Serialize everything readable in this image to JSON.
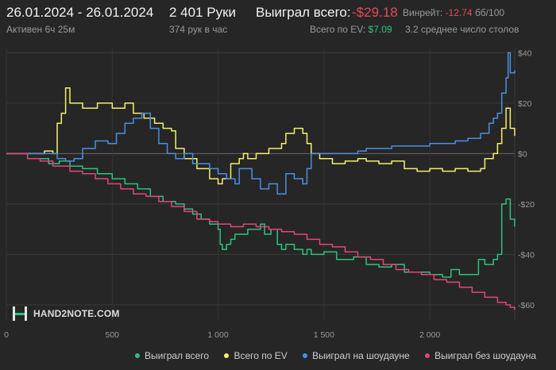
{
  "header": {
    "date_range": "26.01.2024 - 26.01.2024",
    "active": "Активен 6ч 25м",
    "hands": "2 401 Руки",
    "hands_per_hour": "374 рук в час",
    "won_label": "Выиграл всего:",
    "won_value": "-$29.18",
    "winrate_label": "Винрейт:",
    "winrate_value": "-12.74",
    "winrate_unit": "бб/100",
    "ev_label": "Всего по EV:",
    "ev_value": "$7.09",
    "tables": "3.2 среднее число столов"
  },
  "logo": {
    "text": "HAND2NOTE.COM"
  },
  "colors": {
    "background": "#262626",
    "green": "#2ec27e",
    "yellow": "#f4f06a",
    "blue": "#4a90e2",
    "pink": "#e2457a",
    "red": "#e24a5a"
  },
  "chart_data": {
    "type": "line",
    "xlim": [
      0,
      2401
    ],
    "ylim": [
      -66,
      42
    ],
    "x_ticks": [
      0,
      500,
      1000,
      1500,
      2000
    ],
    "x_tick_labels": [
      "0",
      "500",
      "1 000",
      "1 500",
      "2 000"
    ],
    "y_ticks": [
      40,
      20,
      0,
      -20,
      -40,
      -60
    ],
    "y_tick_labels": [
      "$40",
      "$20",
      "$0",
      "-$20",
      "-$40",
      "-$60"
    ],
    "grid": true,
    "legend_position": "bottom",
    "series": [
      {
        "name": "Выиграл всего",
        "color": "#2ec27e",
        "points": [
          [
            0,
            0
          ],
          [
            100,
            -2
          ],
          [
            200,
            -4
          ],
          [
            250,
            -3
          ],
          [
            300,
            -5
          ],
          [
            360,
            -6
          ],
          [
            430,
            -8
          ],
          [
            500,
            -10
          ],
          [
            560,
            -12
          ],
          [
            620,
            -14
          ],
          [
            680,
            -17
          ],
          [
            740,
            -19
          ],
          [
            800,
            -20
          ],
          [
            840,
            -22
          ],
          [
            880,
            -24
          ],
          [
            920,
            -26
          ],
          [
            960,
            -28
          ],
          [
            1000,
            -30
          ],
          [
            1010,
            -36
          ],
          [
            1020,
            -38
          ],
          [
            1040,
            -36
          ],
          [
            1060,
            -34
          ],
          [
            1080,
            -32
          ],
          [
            1100,
            -32
          ],
          [
            1140,
            -30
          ],
          [
            1180,
            -30
          ],
          [
            1200,
            -28
          ],
          [
            1220,
            -32
          ],
          [
            1250,
            -30
          ],
          [
            1280,
            -36
          ],
          [
            1300,
            -38
          ],
          [
            1320,
            -36
          ],
          [
            1360,
            -38
          ],
          [
            1400,
            -40
          ],
          [
            1420,
            -38
          ],
          [
            1440,
            -40
          ],
          [
            1500,
            -39
          ],
          [
            1560,
            -42
          ],
          [
            1640,
            -41
          ],
          [
            1700,
            -44
          ],
          [
            1760,
            -45
          ],
          [
            1820,
            -44
          ],
          [
            1880,
            -47
          ],
          [
            1940,
            -47
          ],
          [
            2000,
            -48
          ],
          [
            2060,
            -49
          ],
          [
            2100,
            -46
          ],
          [
            2140,
            -48
          ],
          [
            2200,
            -48
          ],
          [
            2230,
            -42
          ],
          [
            2260,
            -44
          ],
          [
            2300,
            -42
          ],
          [
            2320,
            -40
          ],
          [
            2340,
            -20
          ],
          [
            2360,
            -18
          ],
          [
            2380,
            -26
          ],
          [
            2401,
            -29
          ]
        ]
      },
      {
        "name": "Всего по EV",
        "color": "#f4f06a",
        "points": [
          [
            0,
            0
          ],
          [
            150,
            0
          ],
          [
            180,
            1
          ],
          [
            220,
            0
          ],
          [
            240,
            12
          ],
          [
            260,
            16
          ],
          [
            280,
            26
          ],
          [
            300,
            20
          ],
          [
            360,
            18
          ],
          [
            430,
            20
          ],
          [
            500,
            18
          ],
          [
            560,
            20
          ],
          [
            600,
            16
          ],
          [
            650,
            14
          ],
          [
            700,
            12
          ],
          [
            740,
            10
          ],
          [
            780,
            9
          ],
          [
            800,
            2
          ],
          [
            840,
            -2
          ],
          [
            900,
            -6
          ],
          [
            960,
            -10
          ],
          [
            1000,
            -12
          ],
          [
            1020,
            -10
          ],
          [
            1060,
            -4
          ],
          [
            1100,
            -2
          ],
          [
            1120,
            0
          ],
          [
            1140,
            -2
          ],
          [
            1180,
            0
          ],
          [
            1240,
            2
          ],
          [
            1300,
            4
          ],
          [
            1320,
            8
          ],
          [
            1360,
            10
          ],
          [
            1400,
            8
          ],
          [
            1420,
            4
          ],
          [
            1440,
            0
          ],
          [
            1480,
            -2
          ],
          [
            1540,
            -4
          ],
          [
            1600,
            -3
          ],
          [
            1660,
            -2
          ],
          [
            1700,
            -3
          ],
          [
            1760,
            -4
          ],
          [
            1820,
            -3
          ],
          [
            1880,
            -6
          ],
          [
            1940,
            -7
          ],
          [
            2000,
            -6
          ],
          [
            2060,
            -7
          ],
          [
            2120,
            -6
          ],
          [
            2180,
            -7
          ],
          [
            2240,
            -6
          ],
          [
            2260,
            -2
          ],
          [
            2300,
            0
          ],
          [
            2320,
            4
          ],
          [
            2340,
            10
          ],
          [
            2360,
            18
          ],
          [
            2380,
            10
          ],
          [
            2401,
            7
          ]
        ]
      },
      {
        "name": "Выиграл на шоудауне",
        "color": "#4a90e2",
        "points": [
          [
            0,
            0
          ],
          [
            150,
            0
          ],
          [
            200,
            0
          ],
          [
            240,
            -2
          ],
          [
            280,
            -3
          ],
          [
            320,
            -2
          ],
          [
            360,
            2
          ],
          [
            420,
            5
          ],
          [
            480,
            4
          ],
          [
            520,
            8
          ],
          [
            560,
            12
          ],
          [
            600,
            14
          ],
          [
            640,
            16
          ],
          [
            680,
            10
          ],
          [
            720,
            4
          ],
          [
            760,
            0
          ],
          [
            800,
            -2
          ],
          [
            840,
            0
          ],
          [
            880,
            -4
          ],
          [
            920,
            -4
          ],
          [
            960,
            -6
          ],
          [
            1000,
            -8
          ],
          [
            1040,
            -10
          ],
          [
            1080,
            -12
          ],
          [
            1100,
            -6
          ],
          [
            1120,
            -6
          ],
          [
            1160,
            -10
          ],
          [
            1200,
            -14
          ],
          [
            1240,
            -12
          ],
          [
            1280,
            -16
          ],
          [
            1320,
            -8
          ],
          [
            1360,
            -10
          ],
          [
            1400,
            -12
          ],
          [
            1420,
            -6
          ],
          [
            1440,
            0
          ],
          [
            1480,
            0
          ],
          [
            1540,
            0
          ],
          [
            1600,
            0
          ],
          [
            1660,
            1
          ],
          [
            1700,
            2
          ],
          [
            1760,
            2
          ],
          [
            1820,
            3
          ],
          [
            1880,
            3
          ],
          [
            1940,
            3
          ],
          [
            2000,
            4
          ],
          [
            2060,
            4
          ],
          [
            2120,
            5
          ],
          [
            2180,
            6
          ],
          [
            2240,
            8
          ],
          [
            2280,
            12
          ],
          [
            2300,
            14
          ],
          [
            2320,
            16
          ],
          [
            2340,
            24
          ],
          [
            2360,
            30
          ],
          [
            2370,
            40
          ],
          [
            2380,
            32
          ],
          [
            2401,
            33
          ]
        ]
      },
      {
        "name": "Выиграл без шоудауна",
        "color": "#e2457a",
        "points": [
          [
            0,
            0
          ],
          [
            100,
            -2
          ],
          [
            160,
            -3
          ],
          [
            220,
            -5
          ],
          [
            300,
            -7
          ],
          [
            360,
            -8
          ],
          [
            420,
            -10
          ],
          [
            480,
            -12
          ],
          [
            540,
            -14
          ],
          [
            600,
            -16
          ],
          [
            660,
            -17
          ],
          [
            720,
            -19
          ],
          [
            780,
            -21
          ],
          [
            840,
            -23
          ],
          [
            900,
            -26
          ],
          [
            960,
            -27
          ],
          [
            1000,
            -28
          ],
          [
            1060,
            -29
          ],
          [
            1120,
            -28
          ],
          [
            1180,
            -29
          ],
          [
            1240,
            -30
          ],
          [
            1300,
            -31
          ],
          [
            1360,
            -32
          ],
          [
            1420,
            -34
          ],
          [
            1480,
            -36
          ],
          [
            1540,
            -37
          ],
          [
            1600,
            -39
          ],
          [
            1660,
            -41
          ],
          [
            1720,
            -42
          ],
          [
            1780,
            -44
          ],
          [
            1840,
            -46
          ],
          [
            1900,
            -47
          ],
          [
            1960,
            -48
          ],
          [
            2020,
            -50
          ],
          [
            2080,
            -51
          ],
          [
            2140,
            -53
          ],
          [
            2200,
            -55
          ],
          [
            2260,
            -57
          ],
          [
            2320,
            -59
          ],
          [
            2360,
            -60
          ],
          [
            2380,
            -61
          ],
          [
            2401,
            -62
          ]
        ]
      }
    ]
  }
}
